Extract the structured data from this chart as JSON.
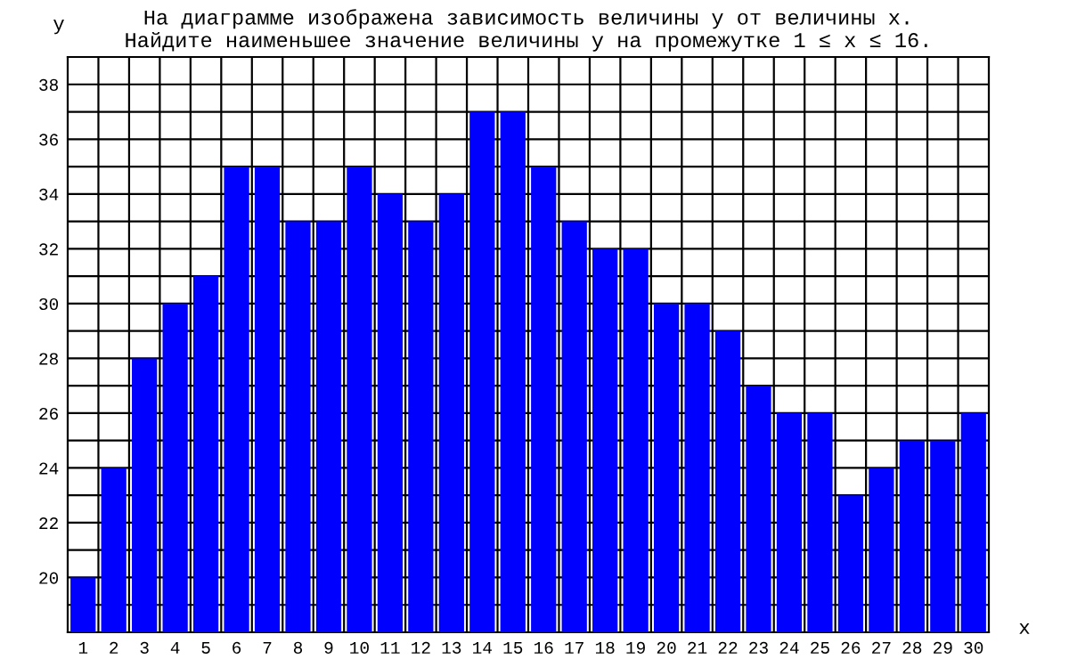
{
  "chart_data": {
    "type": "bar",
    "title": "На диаграмме изображена зависимость величины у от величины х.\nНайдите наименьшее значение величины у на промежутке 1 ≤ х ≤ 16.",
    "xlabel": "х",
    "ylabel": "у",
    "categories": [
      "1",
      "2",
      "3",
      "4",
      "5",
      "6",
      "7",
      "8",
      "9",
      "10",
      "11",
      "12",
      "13",
      "14",
      "15",
      "16",
      "17",
      "18",
      "19",
      "20",
      "21",
      "22",
      "23",
      "24",
      "25",
      "26",
      "27",
      "28",
      "29",
      "30"
    ],
    "values": [
      20,
      24,
      28,
      30,
      31,
      35,
      35,
      33,
      33,
      35,
      34,
      33,
      34,
      37,
      37,
      35,
      33,
      32,
      32,
      30,
      30,
      29,
      27,
      26,
      26,
      23,
      24,
      25,
      25,
      26
    ],
    "color": "#0000ff",
    "ylim": [
      18,
      39
    ],
    "yticks": [
      {
        "value": 18,
        "label": null
      },
      {
        "value": 19,
        "label": null
      },
      20,
      {
        "value": 21,
        "label": null
      },
      22,
      {
        "value": 23,
        "label": null
      },
      24,
      {
        "value": 25,
        "label": null
      },
      26,
      {
        "value": 27,
        "label": null
      },
      28,
      {
        "value": 29,
        "label": null
      },
      30,
      {
        "value": 31,
        "label": null
      },
      32,
      {
        "value": 33,
        "label": null
      },
      34,
      {
        "value": 35,
        "label": null
      },
      36,
      {
        "value": 37,
        "label": null
      },
      38,
      {
        "value": 39,
        "label": null
      }
    ],
    "grid": true
  }
}
